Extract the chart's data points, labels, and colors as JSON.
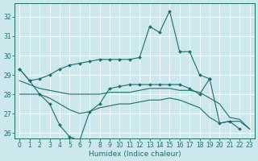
{
  "title": "",
  "xlabel": "Humidex (Indice chaleur)",
  "xlim": [
    -0.5,
    23.5
  ],
  "ylim": [
    25.7,
    32.7
  ],
  "yticks": [
    26,
    27,
    28,
    29,
    30,
    31,
    32
  ],
  "xticks": [
    0,
    1,
    2,
    3,
    4,
    5,
    6,
    7,
    8,
    9,
    10,
    11,
    12,
    13,
    14,
    15,
    16,
    17,
    18,
    19,
    20,
    21,
    22,
    23
  ],
  "bg_color": "#cce8ed",
  "grid_color": "#ffffff",
  "line_color": "#1a6e6a",
  "lines": [
    {
      "x": [
        0,
        1,
        2,
        3,
        4,
        5,
        6,
        7,
        8,
        9,
        10,
        11,
        12,
        13,
        14,
        15,
        16,
        17,
        18,
        19
      ],
      "y": [
        29.3,
        28.7,
        28.8,
        29.0,
        29.3,
        29.5,
        29.6,
        29.7,
        29.8,
        29.8,
        29.8,
        29.8,
        29.9,
        31.5,
        31.2,
        32.3,
        30.2,
        30.2,
        29.0,
        28.8
      ],
      "marker": "D",
      "markersize": 2.0,
      "linewidth": 0.8
    },
    {
      "x": [
        0,
        1,
        2,
        3,
        4,
        5,
        6,
        7,
        8,
        9,
        10,
        11,
        12,
        13,
        14,
        15,
        16,
        17,
        18,
        19,
        20,
        21,
        22
      ],
      "y": [
        29.3,
        28.7,
        28.0,
        27.5,
        26.4,
        25.8,
        25.6,
        27.1,
        27.5,
        28.3,
        28.4,
        28.5,
        28.5,
        28.5,
        28.5,
        28.5,
        28.5,
        28.3,
        28.0,
        28.8,
        26.5,
        26.6,
        26.2
      ],
      "marker": "D",
      "markersize": 2.0,
      "linewidth": 0.8
    },
    {
      "x": [
        0,
        1,
        2,
        3,
        4,
        5,
        6,
        7,
        8,
        9,
        10,
        11,
        12,
        13,
        14,
        15,
        16,
        17,
        18,
        19,
        20,
        21,
        22,
        23
      ],
      "y": [
        28.7,
        28.5,
        28.3,
        28.2,
        28.1,
        28.0,
        28.0,
        28.0,
        28.0,
        28.1,
        28.1,
        28.1,
        28.2,
        28.3,
        28.3,
        28.3,
        28.2,
        28.2,
        28.1,
        27.8,
        27.5,
        26.8,
        26.7,
        26.2
      ],
      "marker": null,
      "linewidth": 0.8
    },
    {
      "x": [
        0,
        1,
        2,
        3,
        4,
        5,
        6,
        7,
        8,
        9,
        10,
        11,
        12,
        13,
        14,
        15,
        16,
        17,
        18,
        19,
        20,
        21,
        22,
        23
      ],
      "y": [
        28.0,
        28.0,
        28.0,
        27.8,
        27.5,
        27.2,
        27.0,
        27.1,
        27.3,
        27.4,
        27.5,
        27.5,
        27.6,
        27.7,
        27.7,
        27.8,
        27.7,
        27.5,
        27.3,
        26.8,
        26.5,
        26.6,
        26.6,
        26.2
      ],
      "marker": null,
      "linewidth": 0.8
    }
  ]
}
